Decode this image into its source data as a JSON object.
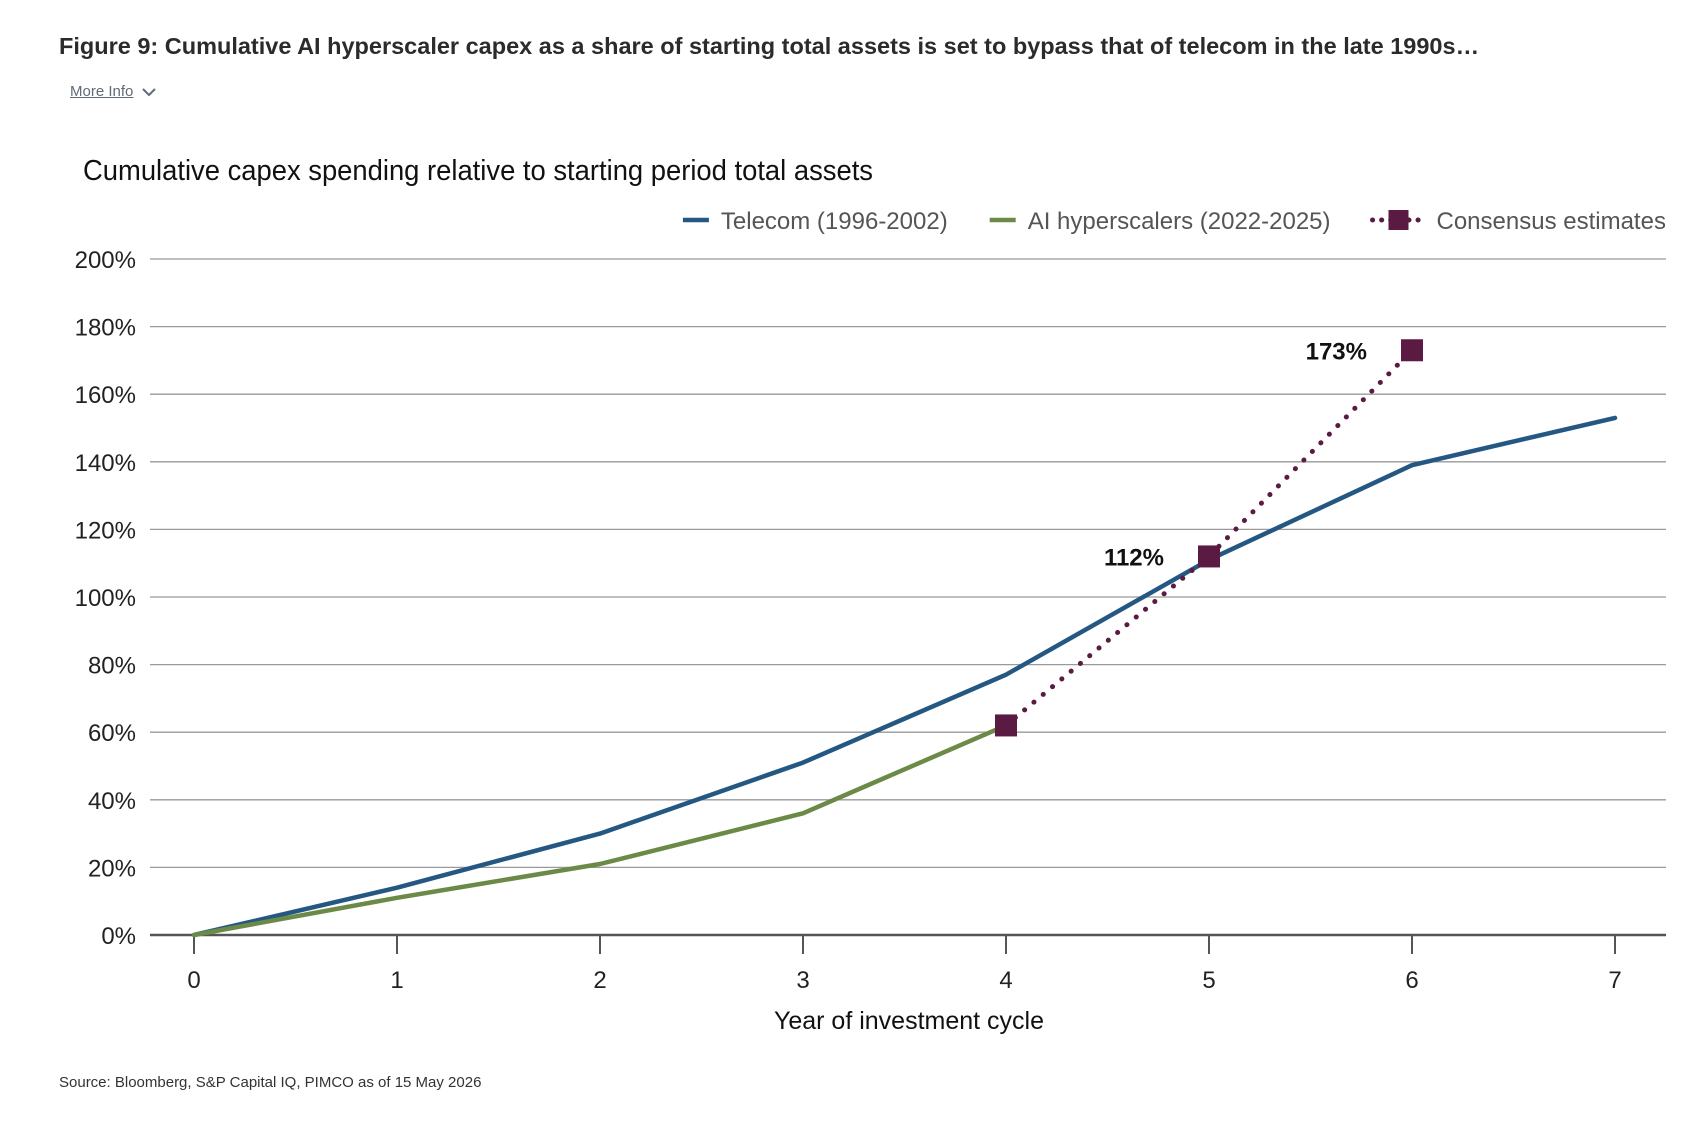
{
  "figure": {
    "title": "Figure 9: Cumulative AI hyperscaler capex as a share of starting total assets is set to bypass that of telecom in the late 1990s…",
    "more_info_label": "More Info",
    "more_info_icon": "chevron-down-icon",
    "source": "Source: Bloomberg, S&P Capital IQ, PIMCO as of 15 May 2026"
  },
  "chart_data": {
    "type": "line",
    "title": "Cumulative capex spending relative to starting period total assets",
    "xlabel": "Year of investment cycle",
    "ylabel": "",
    "xlim": [
      0,
      7
    ],
    "ylim": [
      0,
      200
    ],
    "x_ticks": [
      "0",
      "1",
      "2",
      "3",
      "4",
      "5",
      "6",
      "7"
    ],
    "y_ticks": [
      "0%",
      "20%",
      "40%",
      "60%",
      "80%",
      "100%",
      "120%",
      "140%",
      "160%",
      "180%",
      "200%"
    ],
    "grid": true,
    "legend_position": "top-right",
    "series": [
      {
        "name": "Telecom (1996-2002)",
        "color": "#245882",
        "style": "solid",
        "x": [
          0,
          1,
          2,
          3,
          4,
          5,
          6,
          7
        ],
        "values": [
          0,
          14,
          30,
          51,
          77,
          111,
          139,
          153
        ]
      },
      {
        "name": "AI hyperscalers (2022-2025)",
        "color": "#6b8a47",
        "style": "solid",
        "x": [
          0,
          1,
          2,
          3,
          4
        ],
        "values": [
          0,
          11,
          21,
          36,
          62
        ]
      },
      {
        "name": "Consensus estimates",
        "color": "#5a1a42",
        "style": "dotted-with-square-markers",
        "x": [
          4,
          5,
          6
        ],
        "values": [
          62,
          112,
          173
        ]
      }
    ],
    "annotations": [
      {
        "x": 5,
        "y": 112,
        "text": "112%"
      },
      {
        "x": 6,
        "y": 173,
        "text": "173%"
      }
    ]
  }
}
